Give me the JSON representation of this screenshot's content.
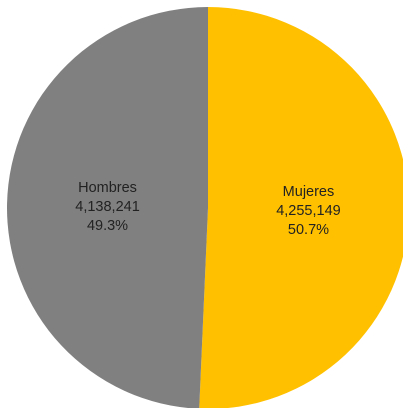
{
  "chart_data": {
    "type": "pie",
    "slices": [
      {
        "label": "Mujeres",
        "value_text": "4,255,149",
        "percent_text": "50.7%",
        "value": 4255149,
        "percent": 50.7,
        "color": "#ffc000",
        "label_color": "#222222"
      },
      {
        "label": "Hombres",
        "value_text": "4,138,241",
        "percent_text": "49.3%",
        "value": 4138241,
        "percent": 49.3,
        "color": "#808080",
        "label_color": "#222222"
      }
    ],
    "start": "12 o'clock",
    "direction": "clockwise",
    "legend": "none",
    "data_labels": "inside"
  }
}
